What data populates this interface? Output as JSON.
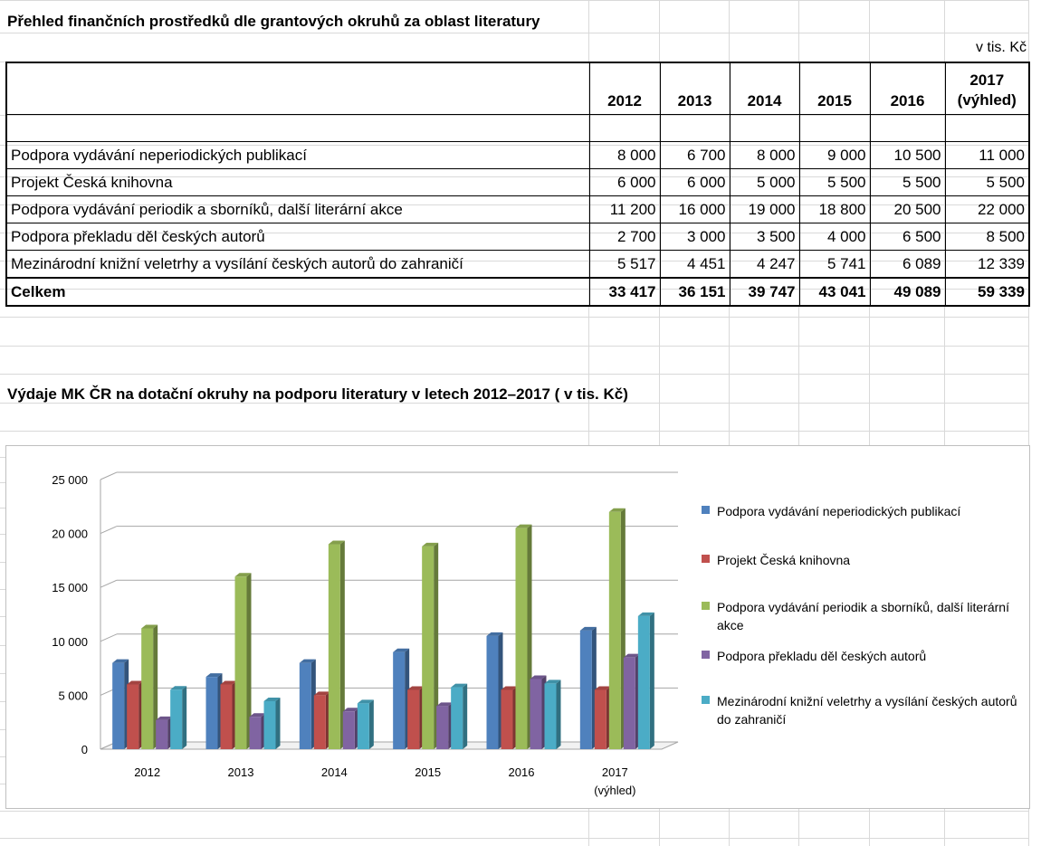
{
  "sheet": {
    "table_title": "Přehled finančních prostředků dle grantových okruhů za oblast literatury",
    "unit_label": "v tis. Kč",
    "chart_title": "Výdaje MK ČR na dotační okruhy na podporu literatury v letech 2012–2017 ( v tis. Kč)"
  },
  "table": {
    "headers": [
      "",
      "2012",
      "2013",
      "2014",
      "2015",
      "2016",
      "2017\n(výhled)"
    ],
    "rows": [
      {
        "label": "Podpora vydávání neperiodických publikací",
        "values": [
          "8 000",
          "6 700",
          "8 000",
          "9 000",
          "10 500",
          "11 000"
        ]
      },
      {
        "label": "Projekt Česká knihovna",
        "values": [
          "6 000",
          "6 000",
          "5 000",
          "5 500",
          "5 500",
          "5 500"
        ]
      },
      {
        "label": "Podpora vydávání periodik a sborníků, další literární akce",
        "values": [
          "11 200",
          "16 000",
          "19 000",
          "18 800",
          "20 500",
          "22 000"
        ]
      },
      {
        "label": "Podpora překladu děl českých autorů",
        "values": [
          "2 700",
          "3 000",
          "3 500",
          "4 000",
          "6 500",
          "8 500"
        ]
      },
      {
        "label": "Mezinárodní knižní veletrhy a vysílání českých autorů do zahraničí",
        "values": [
          "5 517",
          "4 451",
          "4 247",
          "5 741",
          "6 089",
          "12 339"
        ]
      }
    ],
    "total": {
      "label": "Celkem",
      "values": [
        "33 417",
        "36 151",
        "39 747",
        "43 041",
        "49 089",
        "59 339"
      ]
    }
  },
  "chart_data": {
    "type": "bar",
    "categories": [
      "2012",
      "2013",
      "2014",
      "2015",
      "2016",
      "2017\n(výhled)"
    ],
    "ylim": [
      0,
      25000
    ],
    "yticks": [
      0,
      5000,
      10000,
      15000,
      20000,
      25000
    ],
    "ytick_labels": [
      "0",
      "5 000",
      "10 000",
      "15 000",
      "20 000",
      "25 000"
    ],
    "legend_position": "right",
    "grid": true,
    "series": [
      {
        "name": "Podpora vydávání neperiodických publikací",
        "color": "#4f81bd",
        "values": [
          8000,
          6700,
          8000,
          9000,
          10500,
          11000
        ]
      },
      {
        "name": "Projekt Česká knihovna",
        "color": "#c0504d",
        "values": [
          6000,
          6000,
          5000,
          5500,
          5500,
          5500
        ]
      },
      {
        "name": "Podpora vydávání periodik a sborníků, další literární akce",
        "color": "#9bbb59",
        "values": [
          11200,
          16000,
          19000,
          18800,
          20500,
          22000
        ]
      },
      {
        "name": "Podpora překladu děl českých autorů",
        "color": "#8064a2",
        "values": [
          2700,
          3000,
          3500,
          4000,
          6500,
          8500
        ]
      },
      {
        "name": "Mezinárodní knižní veletrhy a vysílání českých autorů do zahraničí",
        "color": "#4bacc6",
        "values": [
          5517,
          4451,
          4247,
          5741,
          6089,
          12339
        ]
      }
    ]
  }
}
